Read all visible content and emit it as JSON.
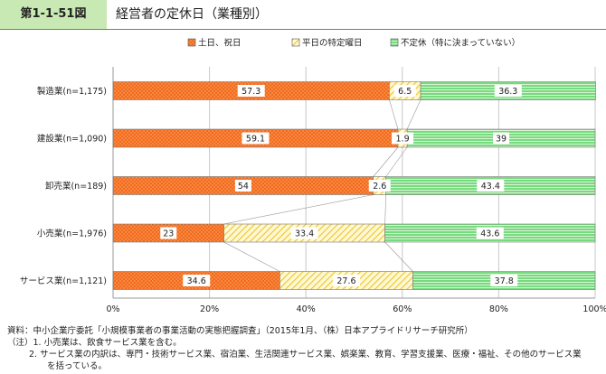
{
  "figure": {
    "number": "第1-1-51図",
    "title": "経営者の定休日（業種別）"
  },
  "chart_data": {
    "type": "bar",
    "orientation": "horizontal",
    "stacked": true,
    "categories": [
      "製造業(n=1,175)",
      "建設業(n=1,090)",
      "卸売業(n=189)",
      "小売業(n=1,976)",
      "サービス業(n=1,121)"
    ],
    "series": [
      {
        "name": "土日、祝日",
        "values": [
          57.3,
          59.1,
          54,
          23,
          34.6
        ],
        "labels": [
          "57.3",
          "59.1",
          "54",
          "23",
          "34.6"
        ],
        "color": "#f26b1d",
        "pattern": "dots"
      },
      {
        "name": "平日の特定曜日",
        "values": [
          6.5,
          1.9,
          2.6,
          33.4,
          27.6
        ],
        "labels": [
          "6.5",
          "1.9",
          "2.6",
          "33.4",
          "27.6"
        ],
        "color": "#f5d94a",
        "pattern": "diagonal"
      },
      {
        "name": "不定休（特に決まっていない）",
        "values": [
          36.3,
          39,
          43.4,
          43.6,
          37.8
        ],
        "labels": [
          "36.3",
          "39",
          "43.4",
          "43.6",
          "37.8"
        ],
        "color": "#5fd36a",
        "pattern": "horizontal"
      }
    ],
    "xlim": [
      0,
      100
    ],
    "xticks": [
      "0%",
      "20%",
      "40%",
      "60%",
      "80%",
      "100%"
    ],
    "grid": true,
    "legend": "top"
  },
  "notes": [
    "資料：中小企業庁委託「小規模事業者の事業活動の実態把握調査」（2015年1月、（株）日本アプライドリサーチ研究所）",
    "（注）1. 小売業は、飲食サービス業を含む。",
    "2. サービス業の内訳は、専門・技術サービス業、宿泊業、生活関連サービス業、娯楽業、教育、学習支援業、医療・福祉、その他のサービス業",
    "を括っている。"
  ]
}
